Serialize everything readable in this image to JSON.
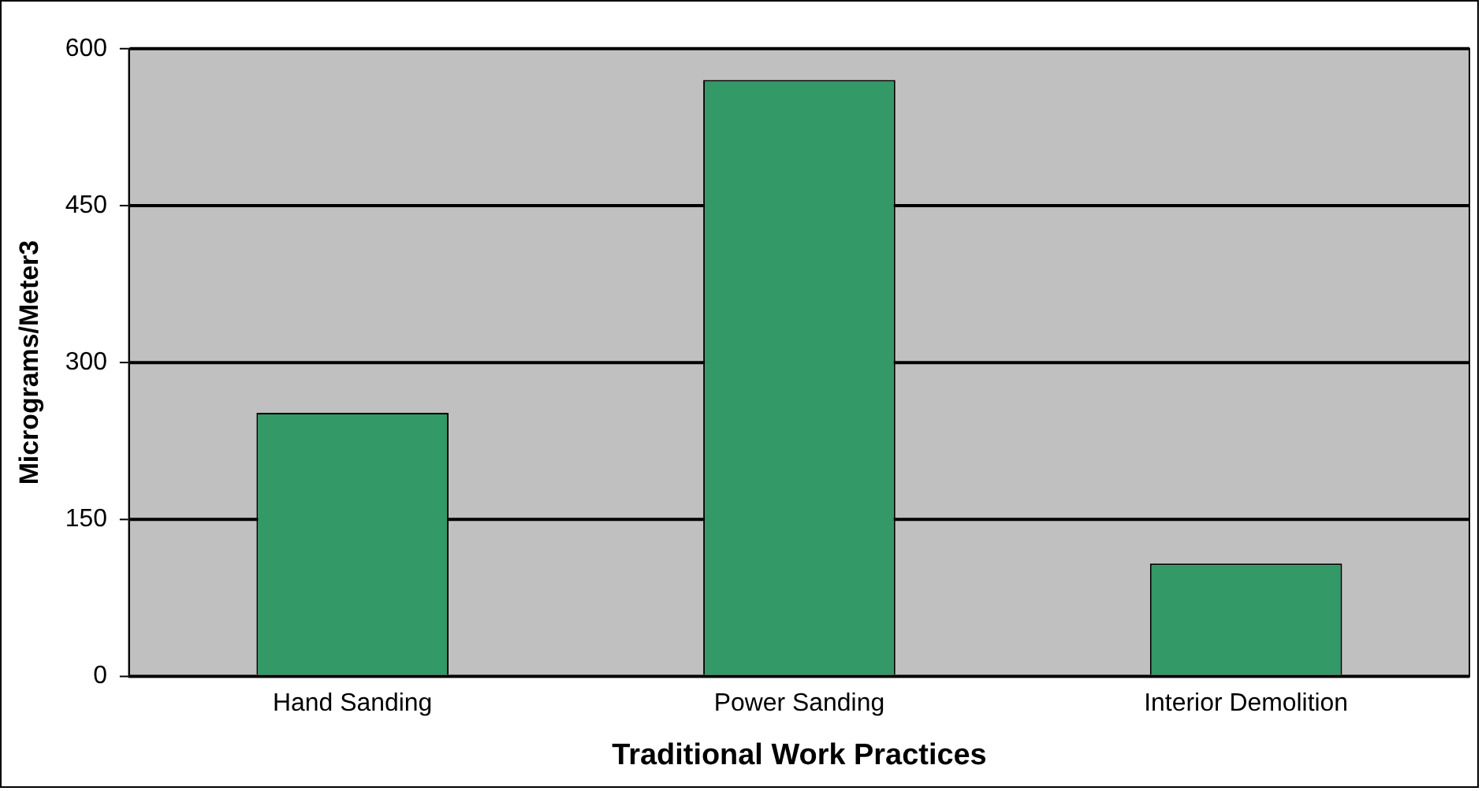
{
  "chart_data": {
    "type": "bar",
    "xlabel": "Traditional Work Practices",
    "ylabel": "Micrograms/Meter3",
    "categories": [
      "Hand Sanding",
      "Power Sanding",
      "Interior Demolition"
    ],
    "values": [
      252,
      570,
      108
    ],
    "color": "#339966",
    "ylim": [
      0,
      600
    ],
    "yticks": [
      0,
      150,
      300,
      450,
      600
    ],
    "grid": "y",
    "legend": false
  }
}
